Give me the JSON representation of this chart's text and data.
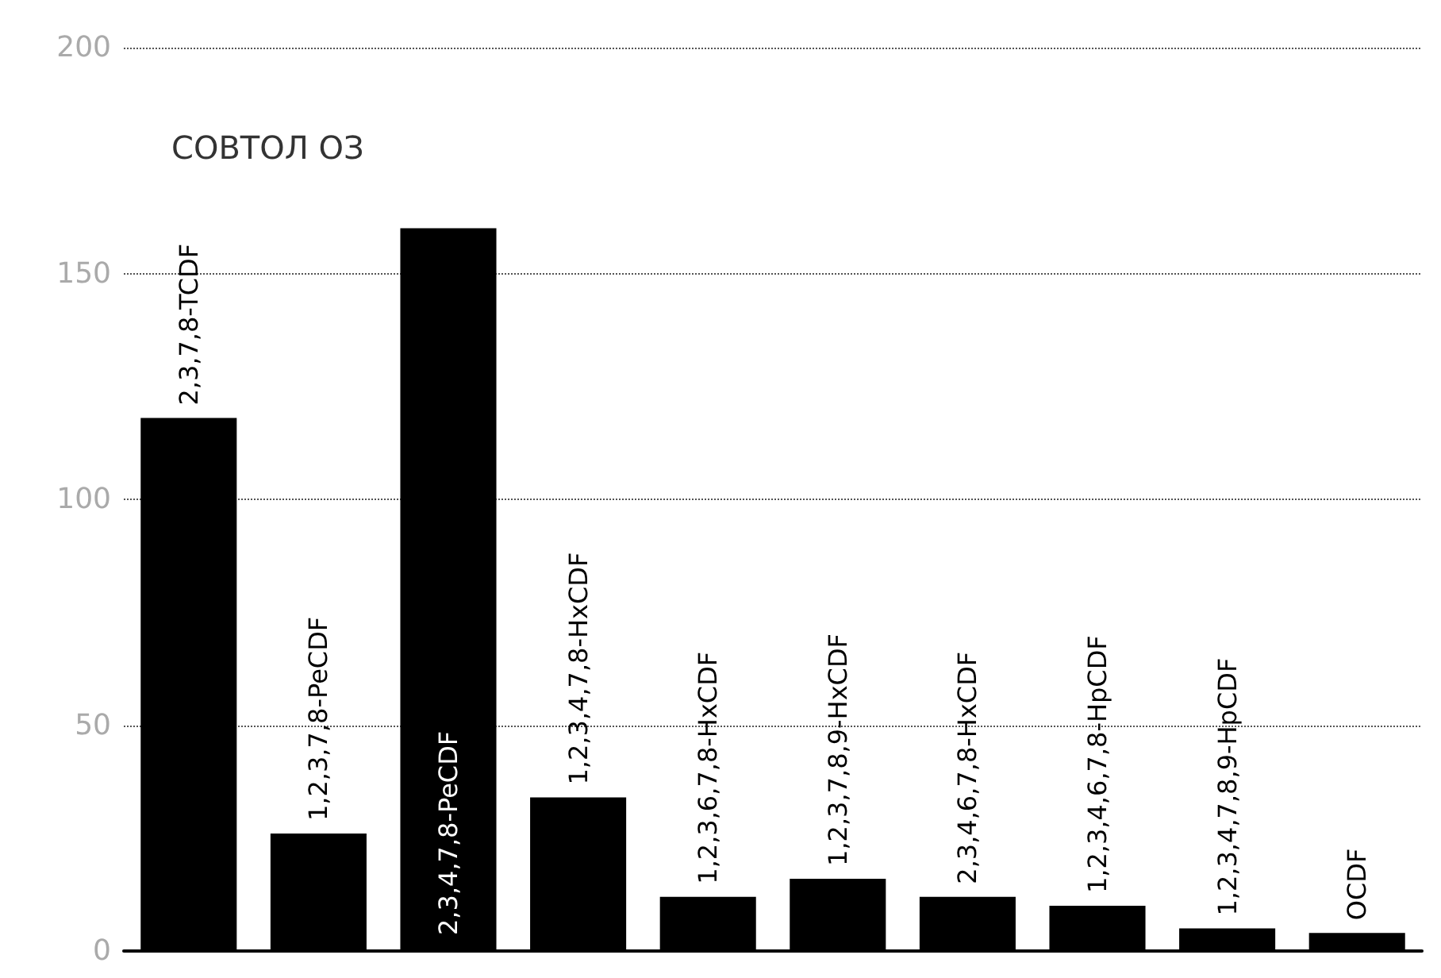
{
  "chart_data": {
    "type": "bar",
    "title": "СОВТОЛ ОЗ",
    "categories": [
      "2,3,7,8-TCDF",
      "1,2,3,7,8-PeCDF",
      "2,3,4,7,8-PeCDF",
      "1,2,3,4,7,8-HxCDF",
      "1,2,3,6,7,8-HxCDF",
      "1,2,3,7,8,9-HxCDF",
      "2,3,4,6,7,8-HxCDF",
      "1,2,3,4,6,7,8-HpCDF",
      "1,2,3,4,7,8,9-HpCDF",
      "OCDF"
    ],
    "values": [
      118,
      26,
      160,
      34,
      12,
      16,
      12,
      10,
      5,
      4
    ],
    "color": "#000000",
    "ylim": [
      0,
      200
    ],
    "yticks": [
      0,
      50,
      100,
      150,
      200
    ],
    "grid": "y",
    "tick_labels": "y"
  }
}
